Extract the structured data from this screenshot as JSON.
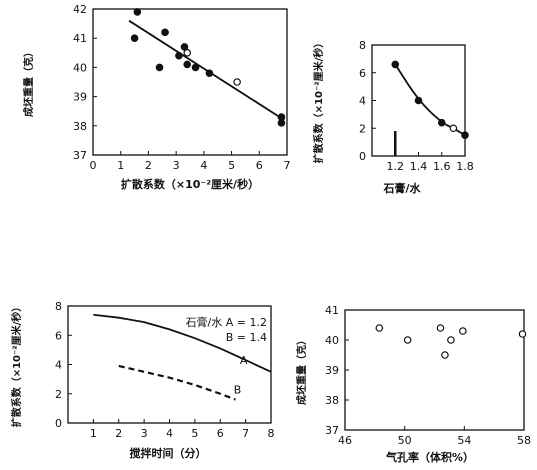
{
  "chart_data": [
    {
      "id": "p1",
      "type": "scatter",
      "title": "",
      "xlabel": "扩散系数（×10⁻²厘米/秒）",
      "ylabel": "成坯重量（克）",
      "xlim": [
        0,
        7
      ],
      "ylim": [
        37,
        42
      ],
      "xticks": [
        "0",
        "1",
        "2",
        "3",
        "4",
        "5",
        "6",
        "7"
      ],
      "yticks": [
        "37",
        "38",
        "39",
        "40",
        "41",
        "42"
      ],
      "grid": false,
      "series": [
        {
          "points": [
            {
              "x": 1.5,
              "y": 41.0,
              "filled": true
            },
            {
              "x": 1.6,
              "y": 41.9,
              "filled": true
            },
            {
              "x": 2.4,
              "y": 40.0,
              "filled": true
            },
            {
              "x": 2.6,
              "y": 41.2,
              "filled": true
            },
            {
              "x": 3.1,
              "y": 40.4,
              "filled": true
            },
            {
              "x": 3.3,
              "y": 40.7,
              "filled": true
            },
            {
              "x": 3.4,
              "y": 40.5,
              "filled": false
            },
            {
              "x": 3.4,
              "y": 40.1,
              "filled": true
            },
            {
              "x": 3.7,
              "y": 40.0,
              "filled": true
            },
            {
              "x": 4.2,
              "y": 39.8,
              "filled": true
            },
            {
              "x": 5.2,
              "y": 39.5,
              "filled": false
            },
            {
              "x": 6.8,
              "y": 38.3,
              "filled": true
            },
            {
              "x": 6.8,
              "y": 38.1,
              "filled": true
            }
          ]
        },
        {
          "kind": "line",
          "points": [
            {
              "x": 1.3,
              "y": 41.6
            },
            {
              "x": 6.9,
              "y": 38.2
            }
          ]
        }
      ]
    },
    {
      "id": "p2",
      "type": "line",
      "title": "",
      "xlabel": "石膏/水",
      "ylabel": "扩散系数（×10⁻²厘米/秒）",
      "xlim": [
        1.0,
        1.8
      ],
      "ylim": [
        0,
        8
      ],
      "xticks": [
        "1.2",
        "1.4",
        "1.6",
        "1.8"
      ],
      "yticks": [
        "0",
        "2",
        "4",
        "6",
        "8"
      ],
      "grid": false,
      "series": [
        {
          "points": [
            {
              "x": 1.2,
              "y": 6.6,
              "filled": true
            },
            {
              "x": 1.4,
              "y": 4.0,
              "filled": true
            },
            {
              "x": 1.6,
              "y": 2.4,
              "filled": true
            },
            {
              "x": 1.7,
              "y": 2.0,
              "filled": false
            },
            {
              "x": 1.8,
              "y": 1.5,
              "filled": true
            }
          ]
        }
      ]
    },
    {
      "id": "p3",
      "type": "line",
      "title": "",
      "xlabel": "搅拌时间（分）",
      "ylabel": "扩散系数（×10⁻²厘米/秒）",
      "xlim": [
        0,
        8
      ],
      "ylim": [
        0,
        8
      ],
      "xticks": [
        "1",
        "2",
        "3",
        "4",
        "5",
        "6",
        "7",
        "8"
      ],
      "yticks": [
        "0",
        "2",
        "4",
        "6",
        "8"
      ],
      "grid": false,
      "legend_lines": [
        "石膏/水  A = 1.2",
        "B = 1.4"
      ],
      "series": [
        {
          "name": "A",
          "style": "solid",
          "points": [
            {
              "x": 1,
              "y": 7.4
            },
            {
              "x": 2,
              "y": 7.2
            },
            {
              "x": 3,
              "y": 6.9
            },
            {
              "x": 4,
              "y": 6.4
            },
            {
              "x": 5,
              "y": 5.8
            },
            {
              "x": 6,
              "y": 5.1
            },
            {
              "x": 7,
              "y": 4.3
            },
            {
              "x": 8,
              "y": 3.5
            }
          ]
        },
        {
          "name": "B",
          "style": "dashed",
          "points": [
            {
              "x": 2,
              "y": 3.9
            },
            {
              "x": 3,
              "y": 3.5
            },
            {
              "x": 4,
              "y": 3.1
            },
            {
              "x": 5,
              "y": 2.6
            },
            {
              "x": 6,
              "y": 2.0
            },
            {
              "x": 6.6,
              "y": 1.6
            }
          ]
        }
      ]
    },
    {
      "id": "p4",
      "type": "scatter",
      "title": "",
      "xlabel": "气孔率（体积%）",
      "ylabel": "成坯重量（克）",
      "xlim": [
        46,
        58
      ],
      "ylim": [
        37,
        41
      ],
      "xticks": [
        "46",
        "50",
        "54",
        "58"
      ],
      "yticks": [
        "37",
        "38",
        "39",
        "40",
        "41"
      ],
      "grid": false,
      "series": [
        {
          "points": [
            {
              "x": 48.3,
              "y": 40.4,
              "filled": false
            },
            {
              "x": 50.2,
              "y": 40.0,
              "filled": false
            },
            {
              "x": 52.4,
              "y": 40.4,
              "filled": false
            },
            {
              "x": 52.7,
              "y": 39.5,
              "filled": false
            },
            {
              "x": 53.1,
              "y": 40.0,
              "filled": false
            },
            {
              "x": 53.9,
              "y": 40.3,
              "filled": false
            },
            {
              "x": 57.9,
              "y": 40.2,
              "filled": false
            }
          ]
        }
      ]
    }
  ]
}
